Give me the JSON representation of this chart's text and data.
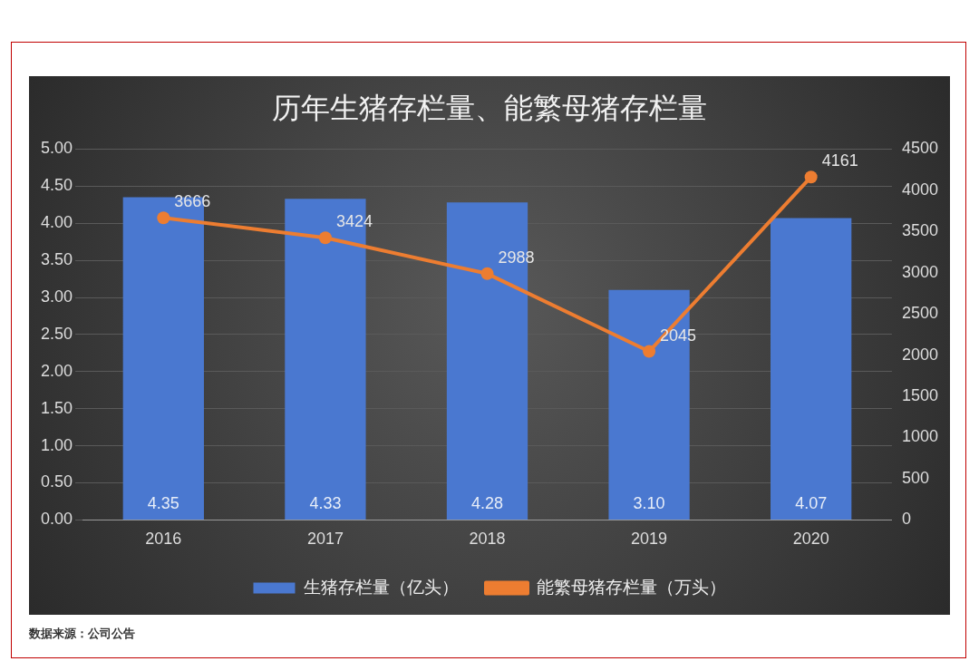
{
  "chart_data": {
    "type": "bar",
    "title": "历年生猪存栏量、能繁母猪存栏量",
    "categories": [
      "2016",
      "2017",
      "2018",
      "2019",
      "2020"
    ],
    "series": [
      {
        "name": "生猪存栏量（亿头）",
        "color": "#4a78d0",
        "values": [
          4.35,
          4.33,
          4.28,
          3.1,
          4.07
        ],
        "value_labels": [
          "4.35",
          "4.33",
          "4.28",
          "3.10",
          "4.07"
        ]
      },
      {
        "name": "能繁母猪存栏量（万头）",
        "type": "line",
        "axis": "y2",
        "color": "#ed7d31",
        "values": [
          3666,
          3424,
          2988,
          2045,
          4161
        ],
        "value_labels": [
          "3666",
          "3424",
          "2988",
          "2045",
          "4161"
        ],
        "marker": "circle"
      }
    ],
    "ylim": [
      0,
      5
    ],
    "yticks": [
      {
        "value": 0,
        "label": "0.00"
      },
      {
        "value": 0.5,
        "label": "0.50"
      },
      {
        "value": 1,
        "label": "1.00"
      },
      {
        "value": 1.5,
        "label": "1.50"
      },
      {
        "value": 2,
        "label": "2.00"
      },
      {
        "value": 2.5,
        "label": "2.50"
      },
      {
        "value": 3,
        "label": "3.00"
      },
      {
        "value": 3.5,
        "label": "3.50"
      },
      {
        "value": 4,
        "label": "4.00"
      },
      {
        "value": 4.5,
        "label": "4.50"
      },
      {
        "value": 5,
        "label": "5.00"
      }
    ],
    "y2lim": [
      0,
      4500
    ],
    "y2ticks": [
      0,
      500,
      1000,
      1500,
      2000,
      2500,
      3000,
      3500,
      4000,
      4500
    ],
    "grid": "y",
    "legend": "bottom",
    "annotations": [
      "数据来源：公司公告"
    ]
  }
}
